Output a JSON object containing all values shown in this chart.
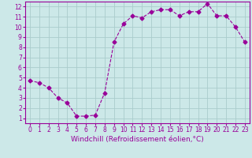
{
  "x": [
    0,
    1,
    2,
    3,
    4,
    5,
    6,
    7,
    8,
    9,
    10,
    11,
    12,
    13,
    14,
    15,
    16,
    17,
    18,
    19,
    20,
    21,
    22,
    23
  ],
  "y": [
    4.7,
    4.5,
    4.0,
    3.0,
    2.5,
    1.2,
    1.2,
    1.3,
    3.5,
    8.5,
    10.3,
    11.1,
    10.9,
    11.5,
    11.7,
    11.7,
    11.1,
    11.5,
    11.5,
    12.3,
    11.1,
    11.1,
    10.0,
    8.5
  ],
  "line_color": "#990099",
  "marker": "D",
  "marker_size": 2.5,
  "bg_color": "#cce8e8",
  "grid_color": "#aacccc",
  "xlabel": "Windchill (Refroidissement éolien,°C)",
  "xlim": [
    -0.5,
    23.5
  ],
  "ylim": [
    0.5,
    12.5
  ],
  "yticks": [
    1,
    2,
    3,
    4,
    5,
    6,
    7,
    8,
    9,
    10,
    11,
    12
  ],
  "xticks": [
    0,
    1,
    2,
    3,
    4,
    5,
    6,
    7,
    8,
    9,
    10,
    11,
    12,
    13,
    14,
    15,
    16,
    17,
    18,
    19,
    20,
    21,
    22,
    23
  ],
  "tick_label_fontsize": 5.5,
  "xlabel_fontsize": 6.5
}
